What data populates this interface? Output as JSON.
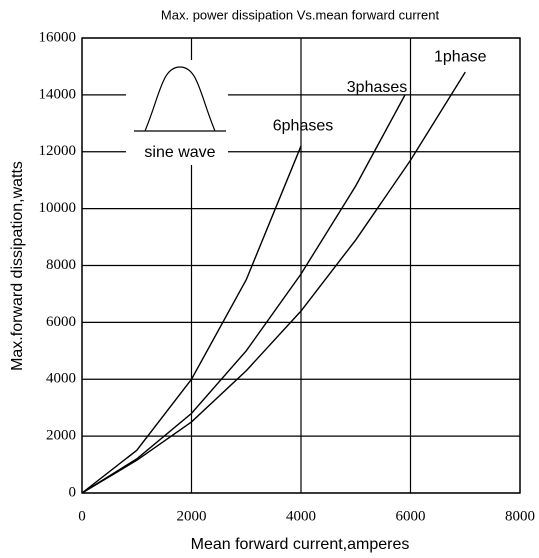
{
  "chart_data": {
    "type": "line",
    "title": "Max. power dissipation  Vs.mean  forward  current",
    "x_label": "Mean forward  current,amperes",
    "y_label": "Max.forward  dissipation,watts",
    "inset_label": "sine wave",
    "xlim": [
      0,
      8000
    ],
    "xticks": [
      0,
      2000,
      4000,
      6000,
      8000
    ],
    "ylim": [
      0,
      16000
    ],
    "yticks": [
      0,
      2000,
      4000,
      6000,
      8000,
      10000,
      12000,
      14000,
      16000
    ],
    "grid": true,
    "series": [
      {
        "name": "1phase",
        "color": "#000000",
        "x": [
          0,
          1000,
          2000,
          3000,
          4000,
          5000,
          6000,
          7000
        ],
        "values": [
          0,
          1150,
          2500,
          4300,
          6400,
          8900,
          11700,
          14800
        ]
      },
      {
        "name": "3phases",
        "color": "#000000",
        "x": [
          0,
          1000,
          2000,
          3000,
          4000,
          5000,
          5900
        ],
        "values": [
          0,
          1200,
          2800,
          5000,
          7700,
          10800,
          14000
        ]
      },
      {
        "name": "6phases",
        "color": "#000000",
        "x": [
          0,
          1000,
          2000,
          3000,
          4000
        ],
        "values": [
          0,
          1500,
          4000,
          7500,
          12200
        ]
      }
    ]
  }
}
